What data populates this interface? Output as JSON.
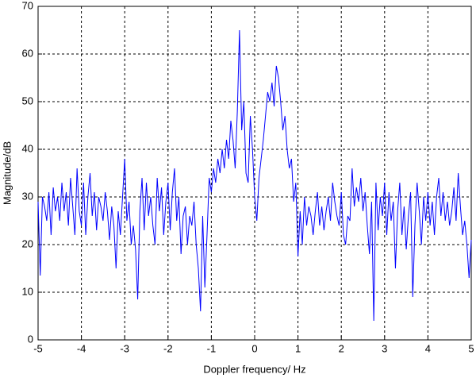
{
  "chart_data": {
    "type": "line",
    "x_label": "Doppler frequency/ Hz",
    "y_label": "Magnitude/dB",
    "xlim": [
      -5,
      5
    ],
    "ylim": [
      0,
      70
    ],
    "xticks": [
      -5,
      -4,
      -3,
      -2,
      -1,
      0,
      1,
      2,
      3,
      4,
      5
    ],
    "yticks": [
      0,
      10,
      20,
      30,
      40,
      50,
      60,
      70
    ],
    "grid": true,
    "x": [
      -5,
      -4.95,
      -4.9,
      -4.85,
      -4.8,
      -4.75,
      -4.7,
      -4.65,
      -4.6,
      -4.55,
      -4.5,
      -4.45,
      -4.4,
      -4.35,
      -4.3,
      -4.25,
      -4.2,
      -4.15,
      -4.1,
      -4.05,
      -4,
      -3.95,
      -3.9,
      -3.85,
      -3.8,
      -3.75,
      -3.7,
      -3.65,
      -3.6,
      -3.55,
      -3.5,
      -3.45,
      -3.4,
      -3.35,
      -3.3,
      -3.25,
      -3.2,
      -3.15,
      -3.1,
      -3.05,
      -3,
      -2.95,
      -2.9,
      -2.85,
      -2.8,
      -2.75,
      -2.7,
      -2.65,
      -2.6,
      -2.55,
      -2.5,
      -2.45,
      -2.4,
      -2.35,
      -2.3,
      -2.25,
      -2.2,
      -2.15,
      -2.1,
      -2.05,
      -2,
      -1.95,
      -1.9,
      -1.85,
      -1.8,
      -1.75,
      -1.7,
      -1.65,
      -1.6,
      -1.55,
      -1.5,
      -1.45,
      -1.4,
      -1.35,
      -1.3,
      -1.25,
      -1.2,
      -1.15,
      -1.1,
      -1.05,
      -1,
      -0.95,
      -0.9,
      -0.85,
      -0.8,
      -0.75,
      -0.7,
      -0.65,
      -0.6,
      -0.55,
      -0.5,
      -0.45,
      -0.4,
      -0.35,
      -0.3,
      -0.25,
      -0.2,
      -0.15,
      -0.1,
      -0.05,
      0,
      0.05,
      0.1,
      0.15,
      0.2,
      0.25,
      0.3,
      0.35,
      0.4,
      0.45,
      0.5,
      0.55,
      0.6,
      0.65,
      0.7,
      0.75,
      0.8,
      0.85,
      0.9,
      0.95,
      1,
      1.05,
      1.1,
      1.15,
      1.2,
      1.25,
      1.3,
      1.35,
      1.4,
      1.45,
      1.5,
      1.55,
      1.6,
      1.65,
      1.7,
      1.75,
      1.8,
      1.85,
      1.9,
      1.95,
      2,
      2.05,
      2.1,
      2.15,
      2.2,
      2.25,
      2.3,
      2.35,
      2.4,
      2.45,
      2.5,
      2.55,
      2.6,
      2.65,
      2.7,
      2.75,
      2.8,
      2.85,
      2.9,
      2.95,
      3,
      3.05,
      3.1,
      3.15,
      3.2,
      3.25,
      3.3,
      3.35,
      3.4,
      3.45,
      3.5,
      3.55,
      3.6,
      3.65,
      3.7,
      3.75,
      3.8,
      3.85,
      3.9,
      3.95,
      4,
      4.05,
      4.1,
      4.15,
      4.2,
      4.25,
      4.3,
      4.35,
      4.4,
      4.45,
      4.5,
      4.55,
      4.6,
      4.65,
      4.7,
      4.75,
      4.8,
      4.85,
      4.9,
      4.95,
      5
    ],
    "series": [
      {
        "color": "#0000ff",
        "values": [
          29,
          13.5,
          30,
          28,
          25,
          31,
          22,
          32,
          27,
          30,
          25,
          33,
          27,
          31,
          24,
          34,
          28,
          22,
          36,
          27,
          24,
          33,
          22,
          30,
          35,
          26,
          31,
          23,
          30,
          28,
          25,
          31,
          27,
          21,
          28,
          24,
          15,
          27,
          22,
          30,
          38,
          25,
          29,
          20,
          24,
          19,
          8.5,
          27,
          34,
          23,
          33,
          26,
          30,
          24,
          20,
          34,
          27,
          32,
          22,
          29,
          33,
          23,
          31,
          36,
          25,
          30,
          18,
          26,
          28,
          20,
          26,
          24,
          29,
          20,
          15,
          6,
          26,
          11,
          22,
          34,
          31,
          36,
          33,
          38,
          35,
          40,
          36,
          42,
          38,
          46,
          42,
          36,
          48,
          65,
          44,
          50,
          35,
          33,
          47,
          40,
          30,
          25,
          34,
          38,
          42,
          47,
          52,
          50,
          54,
          49,
          57.5,
          55,
          50,
          44,
          47,
          40,
          36,
          38,
          29,
          33,
          17.5,
          27,
          20,
          30,
          24,
          28,
          26,
          22,
          27,
          31,
          24,
          28,
          23,
          27,
          30,
          25,
          33,
          29,
          26,
          24,
          31,
          22,
          20,
          26,
          25,
          36,
          28,
          32,
          29,
          34,
          27,
          31,
          24,
          18,
          29,
          4,
          33,
          23,
          30,
          26,
          33,
          22,
          31,
          25,
          29,
          15,
          27,
          33,
          22,
          28,
          19,
          26,
          31,
          9,
          24,
          33,
          27,
          20,
          30,
          25,
          31,
          24,
          29,
          22,
          30,
          34,
          26,
          31,
          25,
          29,
          24,
          27,
          32,
          25,
          35,
          28,
          22,
          25,
          20,
          13,
          21
        ]
      }
    ]
  }
}
